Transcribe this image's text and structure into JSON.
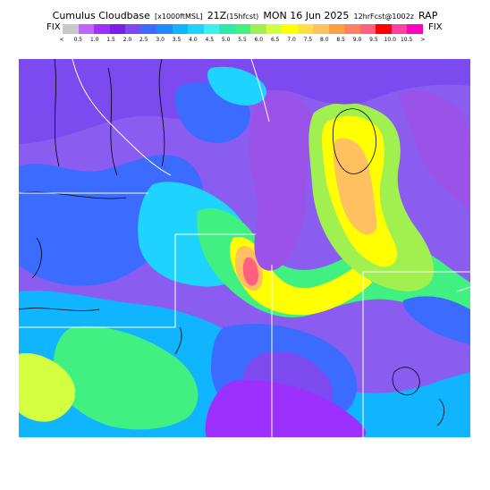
{
  "header": {
    "title_main_a": "Cumulus Cloudbase",
    "title_unit": "[x1000ftMSL]",
    "title_main_b": "21Z",
    "title_fcst": "(15hfcst)",
    "title_main_c": "MON 16 Jun 2025",
    "title_init": "12hrFcst@1002z",
    "title_model": "RAP"
  },
  "legend": {
    "fix_left": "FIX",
    "fix_right": "FIX",
    "colors": [
      "#c8c8c8",
      "#bf66ff",
      "#9b30ff",
      "#7a20e8",
      "#7d4af0",
      "#3c6cff",
      "#1e8cff",
      "#10b4ff",
      "#1ed4ff",
      "#3cf0f0",
      "#30e8a8",
      "#40f080",
      "#a0f050",
      "#d4ff40",
      "#ffff00",
      "#ffe040",
      "#ffc060",
      "#ffa040",
      "#ff8060",
      "#ff6080",
      "#ff0000",
      "#ff40a0",
      "#ff00c0"
    ],
    "ticks": [
      "<",
      "0.5",
      "1.0",
      "1.5",
      "2.0",
      "2.5",
      "3.0",
      "3.5",
      "4.0",
      "4.5",
      "5.0",
      "5.5",
      "6.0",
      "6.5",
      "7.0",
      "7.5",
      "8.0",
      "8.5",
      "9.0",
      "9.5",
      "10.0",
      "10.5",
      ">"
    ]
  },
  "map": {
    "background_color": "#8a5cf0",
    "lake_color": "#9a52e8",
    "border_color": "#ffffff",
    "county_color": "#000000"
  }
}
